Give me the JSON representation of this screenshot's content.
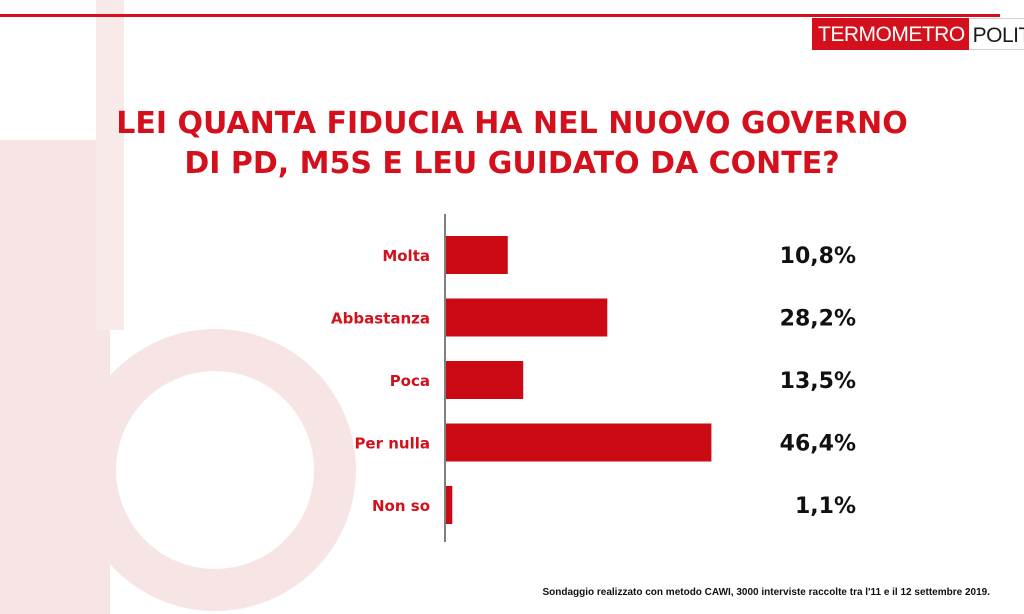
{
  "logo": {
    "part1": "TERMOMETRO",
    "part2": "POLITICO"
  },
  "title_lines": [
    "LEI QUANTA FIDUCIA HA NEL NUOVO GOVERNO",
    "DI PD, M5S E LEU GUIDATO DA CONTE?"
  ],
  "footnote": "Sondaggio realizzato con metodo CAWI, 3000 interviste raccolte tra l'11 e il 12 settembre 2019.",
  "colors": {
    "accent": "#d3101c",
    "bar": "#cc0a14",
    "deco": "#f7e4e4"
  },
  "chart_data": {
    "type": "bar",
    "orientation": "horizontal",
    "categories": [
      "Molta",
      "Abbastanza",
      "Poca",
      "Per nulla",
      "Non so"
    ],
    "values": [
      10.8,
      28.2,
      13.5,
      46.4,
      1.1
    ],
    "value_labels": [
      "10,8%",
      "28,2%",
      "13,5%",
      "46,4%",
      "1,1%"
    ],
    "xlim": [
      0,
      100
    ],
    "grid": false
  }
}
